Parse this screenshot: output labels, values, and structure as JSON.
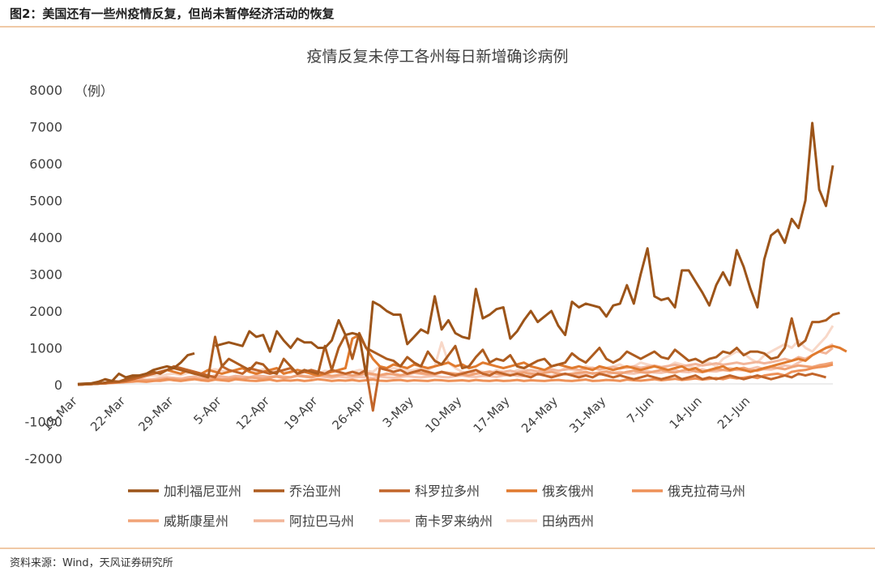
{
  "caption": "图2：美国还有一些州疫情反复，但尚未暂停经济活动的恢复",
  "source": "资料来源：Wind，天风证券研究所",
  "chart_data": {
    "type": "line",
    "title": "疫情反复未停工各州每日新增确诊病例",
    "ylabel": "（例）",
    "ylim": [
      -2000,
      8000
    ],
    "yticks": [
      8000,
      7000,
      6000,
      5000,
      4000,
      3000,
      2000,
      1000,
      0,
      -1000,
      -2000
    ],
    "grid": false,
    "legend_position": "bottom",
    "x_start": "15-Mar",
    "x_end": "27-Jun",
    "x_tick_labels": [
      "15-Mar",
      "22-Mar",
      "29-Mar",
      "5-Apr",
      "12-Apr",
      "19-Apr",
      "26-Apr",
      "3-May",
      "10-May",
      "17-May",
      "24-May",
      "31-May",
      "7-Jun",
      "14-Jun",
      "21-Jun"
    ],
    "series": [
      {
        "name": "加利福尼亚州",
        "color": "#9c5419",
        "values": [
          20,
          30,
          40,
          80,
          150,
          100,
          300,
          200,
          250,
          250,
          300,
          400,
          450,
          500,
          450,
          600,
          800,
          850,
          null,
          null,
          1050,
          1100,
          1150,
          1100,
          1050,
          1450,
          1300,
          1350,
          900,
          1450,
          1200,
          1000,
          1250,
          1150,
          1150,
          1000,
          1000,
          1200,
          1750,
          1350,
          1400,
          1350,
          250,
          2250,
          2150,
          2000,
          1900,
          1900,
          1100,
          1300,
          1500,
          1400,
          2400,
          1500,
          1750,
          1400,
          1300,
          1250,
          2600,
          1800,
          1900,
          2050,
          2100,
          1250,
          1450,
          1750,
          2000,
          1700,
          1850,
          2000,
          1600,
          1350,
          2250,
          2100,
          2200,
          2150,
          2100,
          1850,
          2150,
          2200,
          2700,
          2200,
          3000,
          3700,
          2400,
          2300,
          2350,
          2100,
          3100,
          3100,
          2800,
          2500,
          2150,
          2700,
          3050,
          2700,
          3650,
          3200,
          2600,
          2100,
          3400,
          4050,
          4200,
          3850,
          4500,
          4250,
          5000,
          7100,
          5300,
          4850,
          5950
        ]
      },
      {
        "name": "乔治亚州",
        "color": "#ad5c1f",
        "values": [
          0,
          10,
          20,
          30,
          60,
          100,
          80,
          150,
          200,
          250,
          300,
          350,
          300,
          400,
          450,
          400,
          350,
          300,
          250,
          200,
          1300,
          500,
          700,
          600,
          500,
          400,
          600,
          550,
          350,
          300,
          700,
          500,
          300,
          400,
          350,
          300,
          1050,
          400,
          1000,
          1350,
          700,
          1400,
          1000,
          900,
          800,
          700,
          650,
          500,
          750,
          600,
          500,
          900,
          650,
          550,
          800,
          1050,
          450,
          500,
          750,
          950,
          600,
          700,
          650,
          800,
          500,
          450,
          550,
          650,
          700,
          500,
          550,
          600,
          850,
          700,
          600,
          800,
          1000,
          700,
          600,
          700,
          900,
          800,
          700,
          800,
          900,
          750,
          700,
          950,
          800,
          650,
          700,
          600,
          700,
          750,
          900,
          850,
          1000,
          800,
          900,
          900,
          850,
          700,
          750,
          1000,
          1800,
          1050,
          1200,
          1700,
          1700,
          1750,
          1900,
          1950
        ]
      },
      {
        "name": "科罗拉多州",
        "color": "#c2652a",
        "values": [
          0,
          10,
          20,
          30,
          40,
          60,
          80,
          100,
          150,
          200,
          250,
          300,
          350,
          400,
          500,
          450,
          400,
          350,
          300,
          250,
          200,
          500,
          400,
          350,
          300,
          450,
          400,
          350,
          300,
          350,
          400,
          450,
          300,
          350,
          400,
          350,
          300,
          400,
          350,
          300,
          350,
          300,
          400,
          -700,
          450,
          400,
          350,
          400,
          300,
          350,
          400,
          350,
          300,
          350,
          300,
          250,
          300,
          350,
          400,
          300,
          250,
          350,
          300,
          250,
          300,
          250,
          200,
          300,
          250,
          200,
          250,
          300,
          250,
          200,
          250,
          200,
          300,
          250,
          200,
          250,
          200,
          150,
          200,
          250,
          200,
          150,
          200,
          250,
          150,
          200,
          250,
          150,
          200,
          150,
          200,
          250,
          200,
          150,
          200,
          250,
          200,
          150,
          200,
          250,
          200,
          300,
          250,
          300,
          250,
          200
        ]
      },
      {
        "name": "俄亥俄州",
        "color": "#e07a2e",
        "values": [
          0,
          10,
          20,
          30,
          40,
          60,
          80,
          100,
          150,
          200,
          250,
          300,
          350,
          400,
          350,
          300,
          400,
          350,
          300,
          400,
          350,
          300,
          350,
          400,
          450,
          350,
          300,
          350,
          400,
          450,
          300,
          350,
          400,
          350,
          300,
          250,
          300,
          350,
          400,
          450,
          1250,
          1350,
          1000,
          700,
          500,
          450,
          550,
          500,
          450,
          550,
          500,
          450,
          500,
          550,
          600,
          500,
          550,
          450,
          500,
          600,
          550,
          500,
          450,
          500,
          550,
          600,
          500,
          450,
          400,
          500,
          550,
          500,
          450,
          500,
          450,
          400,
          500,
          450,
          400,
          450,
          500,
          450,
          400,
          450,
          500,
          450,
          400,
          450,
          500,
          400,
          450,
          350,
          400,
          450,
          500,
          400,
          450,
          400,
          350,
          400,
          450,
          500,
          550,
          600,
          650,
          700,
          650,
          800,
          900,
          1000,
          1050,
          1000,
          900
        ]
      },
      {
        "name": "俄克拉荷马州",
        "color": "#ee9158",
        "values": [
          0,
          10,
          20,
          30,
          40,
          50,
          60,
          80,
          100,
          90,
          80,
          100,
          120,
          150,
          120,
          100,
          130,
          150,
          120,
          100,
          140,
          120,
          100,
          150,
          130,
          110,
          100,
          120,
          140,
          100,
          120,
          110,
          130,
          100,
          120,
          150,
          130,
          100,
          120,
          110,
          130,
          100,
          120,
          140,
          110,
          100,
          120,
          130,
          100,
          120,
          110,
          100,
          130,
          120,
          100,
          110,
          120,
          100,
          130,
          110,
          100,
          120,
          100,
          110,
          130,
          100,
          120,
          110,
          100,
          120,
          130,
          110,
          100,
          120,
          140,
          100,
          110,
          130,
          120,
          100,
          140,
          120,
          110,
          130,
          150,
          120,
          140,
          160,
          130,
          150,
          170,
          140,
          160,
          180,
          150,
          200,
          170,
          190,
          220,
          180,
          250,
          280,
          300,
          250,
          350,
          380,
          400,
          450,
          480,
          500,
          550
        ]
      },
      {
        "name": "威斯康星州",
        "color": "#f0a377",
        "values": [
          0,
          10,
          20,
          30,
          40,
          50,
          60,
          70,
          80,
          100,
          120,
          110,
          100,
          130,
          150,
          120,
          140,
          160,
          130,
          150,
          170,
          140,
          160,
          180,
          150,
          200,
          180,
          160,
          200,
          220,
          180,
          200,
          250,
          220,
          200,
          250,
          280,
          240,
          260,
          300,
          250,
          280,
          320,
          290,
          260,
          300,
          280,
          250,
          300,
          350,
          320,
          300,
          280,
          350,
          320,
          300,
          280,
          250,
          300,
          320,
          350,
          300,
          280,
          250,
          300,
          330,
          300,
          280,
          320,
          350,
          300,
          280,
          300,
          320,
          350,
          300,
          330,
          360,
          320,
          300,
          350,
          380,
          340,
          320,
          360,
          400,
          350,
          330,
          380,
          420,
          360,
          340,
          380,
          420,
          400,
          380,
          420,
          460,
          400,
          380,
          430,
          480,
          450,
          420,
          480,
          520,
          500,
          480,
          530,
          560,
          600
        ]
      },
      {
        "name": "阿拉巴马州",
        "color": "#f2b599",
        "values": [
          0,
          10,
          20,
          30,
          50,
          60,
          80,
          100,
          120,
          150,
          130,
          150,
          170,
          200,
          180,
          160,
          200,
          220,
          180,
          200,
          250,
          220,
          200,
          240,
          220,
          200,
          250,
          230,
          210,
          240,
          220,
          200,
          260,
          240,
          220,
          250,
          230,
          210,
          260,
          280,
          240,
          260,
          300,
          270,
          250,
          280,
          300,
          260,
          280,
          320,
          300,
          270,
          290,
          330,
          300,
          280,
          320,
          350,
          300,
          330,
          360,
          320,
          350,
          380,
          340,
          370,
          400,
          360,
          390,
          420,
          380,
          410,
          440,
          400,
          430,
          460,
          420,
          450,
          480,
          440,
          470,
          500,
          460,
          490,
          520,
          480,
          510,
          540,
          500,
          530,
          560,
          520,
          550,
          580,
          540,
          570,
          600,
          560,
          590,
          620,
          580,
          610,
          650,
          700,
          650,
          750,
          700,
          800,
          900,
          850,
          1000
        ]
      },
      {
        "name": "南卡罗来纳州",
        "color": "#f5c4b0",
        "values": [
          0,
          10,
          20,
          30,
          40,
          60,
          80,
          100,
          120,
          110,
          130,
          150,
          140,
          160,
          180,
          170,
          150,
          200,
          180,
          160,
          200,
          190,
          170,
          210,
          200,
          180,
          220,
          200,
          190,
          230,
          210,
          200,
          240,
          220,
          200,
          230,
          210,
          190,
          220,
          200,
          190,
          210,
          200,
          180,
          220,
          200,
          190,
          210,
          230,
          210,
          200,
          220,
          240,
          210,
          200,
          230,
          250,
          220,
          210,
          240,
          230,
          210,
          250,
          270,
          240,
          230,
          260,
          280,
          250,
          240,
          280,
          300,
          270,
          260,
          300,
          320,
          290,
          280,
          320,
          350,
          310,
          300,
          340,
          370,
          330,
          320,
          360,
          400,
          350,
          340,
          380,
          420,
          370,
          360,
          400,
          450,
          400,
          390,
          430,
          480,
          420,
          410,
          460,
          520,
          500,
          600,
          700,
          800,
          900,
          1000,
          1100
        ]
      },
      {
        "name": "田纳西州",
        "color": "#f8d8c8",
        "values": [
          0,
          10,
          20,
          30,
          50,
          70,
          100,
          150,
          200,
          180,
          220,
          250,
          230,
          280,
          300,
          260,
          320,
          350,
          300,
          380,
          420,
          380,
          350,
          400,
          450,
          380,
          350,
          420,
          400,
          380,
          350,
          320,
          400,
          380,
          350,
          300,
          380,
          350,
          320,
          300,
          350,
          400,
          380,
          350,
          500,
          400,
          450,
          420,
          380,
          400,
          450,
          400,
          500,
          1150,
          600,
          450,
          350,
          300,
          400,
          350,
          300,
          400,
          350,
          300,
          400,
          450,
          350,
          300,
          350,
          400,
          350,
          450,
          400,
          350,
          500,
          450,
          400,
          450,
          500,
          550,
          450,
          500,
          600,
          550,
          500,
          450,
          500,
          600,
          550,
          500,
          450,
          550,
          600,
          500,
          700,
          800,
          900,
          850,
          700,
          600,
          800,
          900,
          1000,
          1100,
          1000,
          1200,
          1000,
          900,
          1100,
          1300,
          1600
        ]
      }
    ]
  }
}
